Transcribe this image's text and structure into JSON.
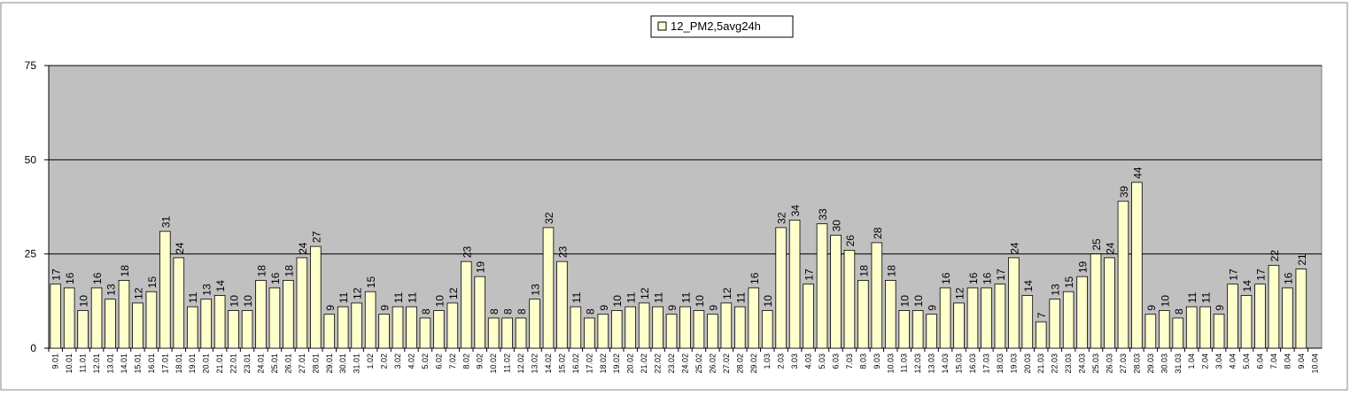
{
  "chart_data": {
    "type": "bar",
    "categories": [
      "9.01",
      "10.01",
      "11.01",
      "12.01",
      "13.01",
      "14.01",
      "15.01",
      "16.01",
      "17.01",
      "18.01",
      "19.01",
      "20.01",
      "21.01",
      "22.01",
      "23.01",
      "24.01",
      "25.01",
      "26.01",
      "27.01",
      "28.01",
      "29.01",
      "30.01",
      "31.01",
      "1.02",
      "2.02",
      "3.02",
      "4.02",
      "5.02",
      "6.02",
      "7.02",
      "8.02",
      "9.02",
      "10.02",
      "11.02",
      "12.02",
      "13.02",
      "14.02",
      "15.02",
      "16.02",
      "17.02",
      "18.02",
      "19.02",
      "20.02",
      "21.02",
      "22.02",
      "23.02",
      "24.02",
      "25.02",
      "26.02",
      "27.02",
      "28.02",
      "29.02",
      "1.03",
      "2.03",
      "3.03",
      "4.03",
      "5.03",
      "6.03",
      "7.03",
      "8.03",
      "9.03",
      "10.03",
      "11.03",
      "12.03",
      "13.03",
      "14.03",
      "15.03",
      "16.03",
      "17.03",
      "18.03",
      "19.03",
      "20.03",
      "21.03",
      "22.03",
      "23.03",
      "24.03",
      "25.03",
      "26.03",
      "27.03",
      "28.03",
      "29.03",
      "30.03",
      "31.03",
      "1.04",
      "2.04",
      "3.04",
      "4.04",
      "5.04",
      "6.04",
      "7.04",
      "8.04",
      "9.04",
      "10.04"
    ],
    "series": [
      {
        "name": "12_PM2,5avg24h",
        "color": "#ffffcc",
        "values": [
          17,
          16,
          10,
          16,
          13,
          18,
          12,
          15,
          31,
          24,
          11,
          13,
          14,
          10,
          10,
          18,
          16,
          18,
          24,
          27,
          9,
          11,
          12,
          15,
          9,
          11,
          11,
          8,
          10,
          12,
          23,
          19,
          8,
          8,
          8,
          13,
          32,
          23,
          11,
          8,
          9,
          10,
          11,
          12,
          11,
          9,
          11,
          10,
          9,
          12,
          11,
          16,
          10,
          32,
          34,
          17,
          33,
          30,
          26,
          18,
          28,
          18,
          10,
          10,
          9,
          16,
          12,
          16,
          16,
          17,
          24,
          14,
          7,
          13,
          15,
          19,
          25,
          24,
          39,
          44,
          9,
          10,
          8,
          11,
          11,
          9,
          17,
          14,
          17,
          22,
          16,
          21,
          null
        ]
      }
    ],
    "ylim": [
      0,
      75
    ],
    "yticks": [
      0,
      25,
      50,
      75
    ],
    "grid": true,
    "plot_background": "#c0c0c0"
  }
}
